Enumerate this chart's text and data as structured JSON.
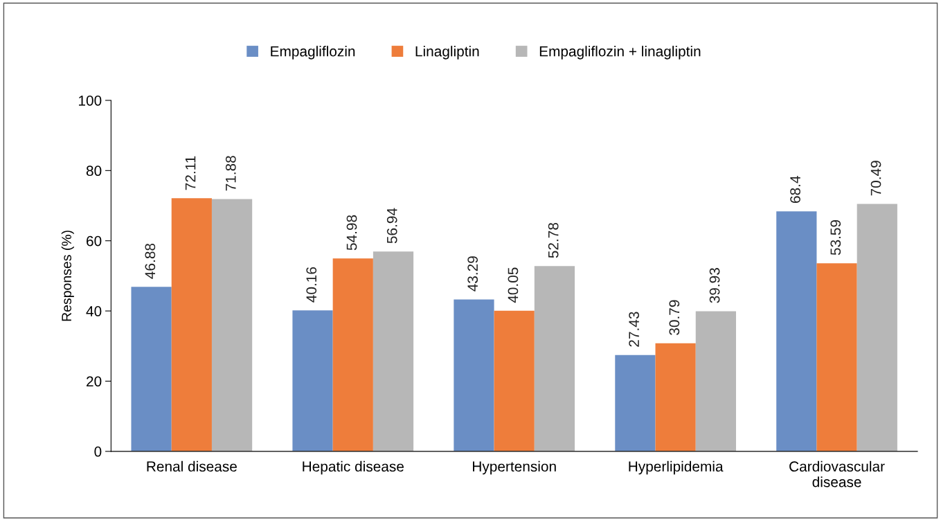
{
  "chart_data": {
    "type": "bar",
    "ylabel": "Responses (%)",
    "categories": [
      "Renal disease",
      "Hepatic disease",
      "Hypertension",
      "Hyperlipidemia",
      "Cardiovascular\ndisease"
    ],
    "series": [
      {
        "name": "Empagliflozin",
        "color": "#6a8ec5",
        "values": [
          46.88,
          40.16,
          43.29,
          27.43,
          68.4
        ]
      },
      {
        "name": "Linagliptin",
        "color": "#ee7d3b",
        "values": [
          72.11,
          54.98,
          40.05,
          30.79,
          53.59
        ]
      },
      {
        "name": "Empagliflozin + linagliptin",
        "color": "#b7b7b7",
        "values": [
          71.88,
          56.94,
          52.78,
          39.93,
          70.49
        ]
      }
    ],
    "ylim": [
      0,
      100
    ],
    "yticks": [
      0,
      20,
      40,
      60,
      80,
      100
    ],
    "data_labels": true,
    "grid": false,
    "legend": "top"
  }
}
